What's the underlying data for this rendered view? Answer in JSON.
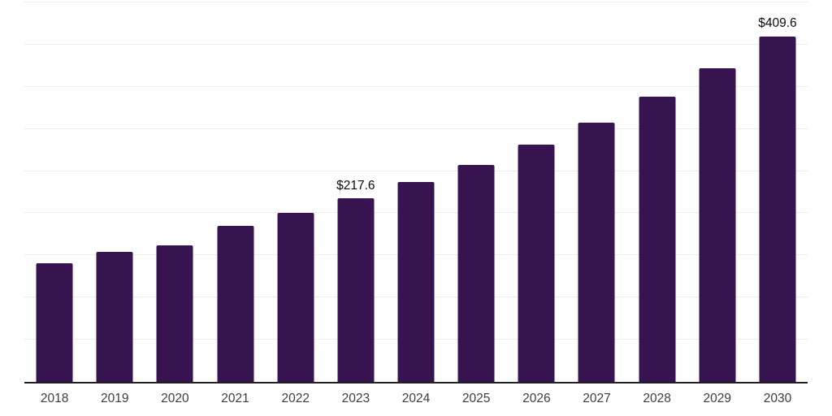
{
  "chart_data": {
    "type": "bar",
    "categories": [
      "2018",
      "2019",
      "2020",
      "2021",
      "2022",
      "2023",
      "2024",
      "2025",
      "2026",
      "2027",
      "2028",
      "2029",
      "2030"
    ],
    "values": [
      141.0,
      154.5,
      162.0,
      185.2,
      200.5,
      217.6,
      237.0,
      257.5,
      281.8,
      307.6,
      337.9,
      371.5,
      409.6
    ],
    "data_labels": [
      {
        "category": "2023",
        "text": "$217.6"
      },
      {
        "category": "2030",
        "text": "$409.6"
      }
    ],
    "title": "",
    "xlabel": "",
    "ylabel": "",
    "ylim": [
      0,
      450
    ],
    "gridline_step": 50,
    "grid": true,
    "legend": false,
    "bar_color": "#371450",
    "axis_line_color": "#1f1f1f",
    "gridline_color": "#ededed",
    "tick_label_color": "#3d3d3d",
    "data_label_color": "#0a0a0a"
  }
}
